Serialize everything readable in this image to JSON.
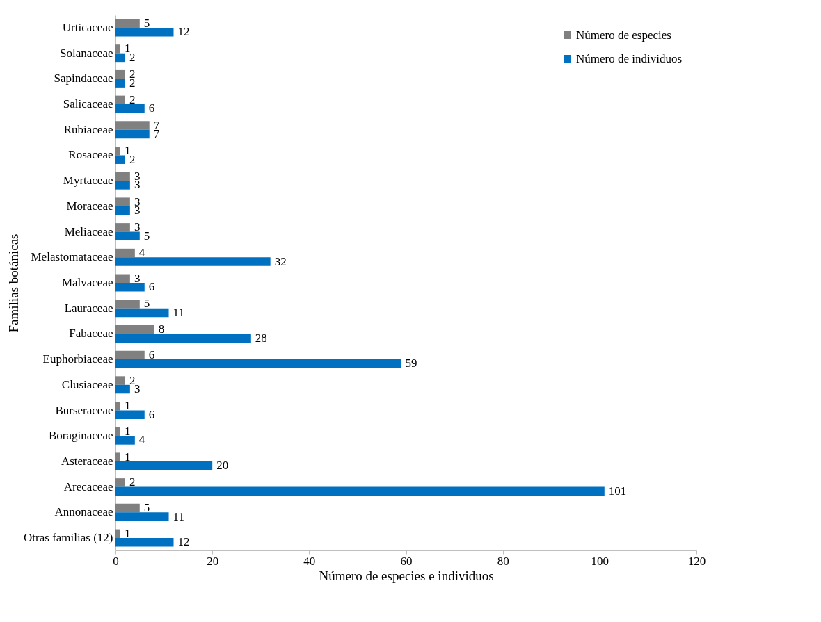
{
  "chart_data": {
    "type": "bar",
    "orientation": "horizontal",
    "xlabel": "Número de especies e individuos",
    "ylabel": "Familias botánicas",
    "categories": [
      "Urticaceae",
      "Solanaceae",
      "Sapindaceae",
      "Salicaceae",
      "Rubiaceae",
      "Rosaceae",
      "Myrtaceae",
      "Moraceae",
      "Meliaceae",
      "Melastomataceae",
      "Malvaceae",
      "Lauraceae",
      "Fabaceae",
      "Euphorbiaceae",
      "Clusiaceae",
      "Burseraceae",
      "Boraginaceae",
      "Asteraceae",
      "Arecaceae",
      "Annonaceae",
      "Otras familias (12)"
    ],
    "series": [
      {
        "name": "Número de especies",
        "color": "#808080",
        "values": [
          5,
          1,
          2,
          2,
          7,
          1,
          3,
          3,
          3,
          4,
          3,
          5,
          8,
          6,
          2,
          1,
          1,
          1,
          2,
          5,
          1
        ]
      },
      {
        "name": "Número de individuos",
        "color": "#0070c0",
        "values": [
          12,
          2,
          2,
          6,
          7,
          2,
          3,
          3,
          5,
          32,
          6,
          11,
          28,
          59,
          3,
          6,
          4,
          20,
          101,
          11,
          12
        ]
      }
    ],
    "xlim": [
      0,
      120
    ],
    "xticks": [
      0,
      20,
      40,
      60,
      80,
      100,
      120
    ],
    "grid": false,
    "legend": "top right",
    "data_labels": true
  }
}
